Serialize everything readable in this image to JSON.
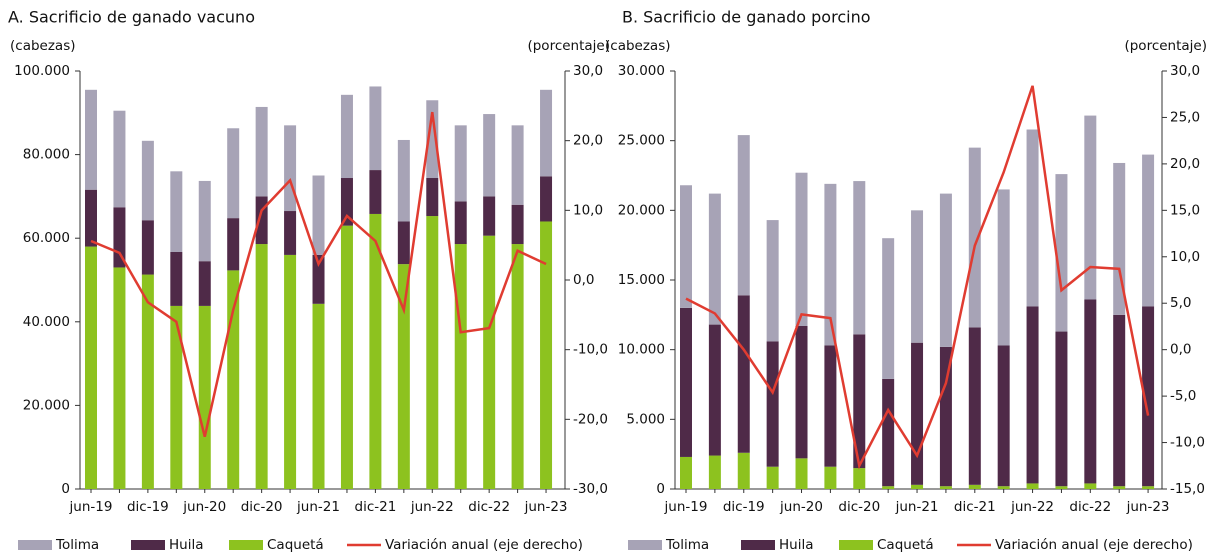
{
  "chart_data": [
    {
      "type": "stacked_bar_line",
      "title": "A. Sacrificio de ganado vacuno",
      "y_label": "(cabezas)",
      "y2_label": "(porcentaje)",
      "categories": [
        "jun-19",
        null,
        "dic-19",
        null,
        "jun-20",
        null,
        "dic-20",
        null,
        "jun-21",
        null,
        "dic-21",
        null,
        "jun-22",
        null,
        "dic-22",
        null,
        "jun-23"
      ],
      "ylim": [
        0,
        100000
      ],
      "yticks": [
        0,
        {
          "value": 20000,
          "label": "20.000"
        },
        {
          "value": 40000,
          "label": "40.000"
        },
        {
          "value": 60000,
          "label": "60.000"
        },
        {
          "value": 80000,
          "label": "80.000"
        },
        {
          "value": 100000,
          "label": "100.000"
        }
      ],
      "y2lim": [
        -30,
        30
      ],
      "y2ticks": [
        {
          "value": -30,
          "label": "-30,0"
        },
        {
          "value": -20,
          "label": "-20,0"
        },
        {
          "value": -10,
          "label": "-10,0"
        },
        {
          "value": 0,
          "label": "0,0"
        },
        {
          "value": 10,
          "label": "10,0"
        },
        {
          "value": 20,
          "label": "20,0"
        },
        {
          "value": 30,
          "label": "30,0"
        }
      ],
      "series": [
        {
          "name": "Caquetá",
          "color": "#8dc21f",
          "values": [
            58000,
            53000,
            51300,
            43800,
            43800,
            52300,
            58600,
            56000,
            44300,
            63000,
            65800,
            53800,
            65300,
            58600,
            60600,
            58600,
            64000
          ]
        },
        {
          "name": "Huila",
          "color": "#4f2a48",
          "values": [
            13600,
            14400,
            13000,
            12900,
            10700,
            12500,
            11400,
            10500,
            11700,
            11400,
            10500,
            10200,
            9100,
            10200,
            9400,
            9400,
            10800
          ]
        },
        {
          "name": "Tolima",
          "color": "#a7a3b6",
          "values": [
            23900,
            23100,
            19000,
            19300,
            19200,
            21500,
            21400,
            20500,
            19000,
            19900,
            20000,
            19500,
            18600,
            18200,
            19700,
            19000,
            20700
          ]
        },
        {
          "name": "Variación anual (eje derecho)",
          "color": "#e03c31",
          "axis": "y2",
          "values": [
            5.6,
            3.9,
            -3.2,
            -6.0,
            -22.5,
            -4.3,
            10.0,
            14.3,
            2.3,
            9.2,
            5.6,
            -4.3,
            24.1,
            -7.5,
            -6.9,
            4.2,
            2.3
          ]
        }
      ]
    },
    {
      "type": "stacked_bar_line",
      "title": "B. Sacrificio de ganado porcino",
      "y_label": "(cabezas)",
      "y2_label": "(porcentaje)",
      "categories": [
        "jun-19",
        null,
        "dic-19",
        null,
        "jun-20",
        null,
        "dic-20",
        null,
        "jun-21",
        null,
        "dic-21",
        null,
        "jun-22",
        null,
        "dic-22",
        null,
        "jun-23"
      ],
      "ylim": [
        0,
        30000
      ],
      "yticks": [
        0,
        {
          "value": 5000,
          "label": "5.000"
        },
        {
          "value": 10000,
          "label": "10.000"
        },
        {
          "value": 15000,
          "label": "15.000"
        },
        {
          "value": 20000,
          "label": "20.000"
        },
        {
          "value": 25000,
          "label": "25.000"
        },
        {
          "value": 30000,
          "label": "30.000"
        }
      ],
      "y2lim": [
        -15,
        30
      ],
      "y2ticks": [
        {
          "value": -15,
          "label": "-15,0"
        },
        {
          "value": -10,
          "label": "-10,0"
        },
        {
          "value": -5,
          "label": "-5,0"
        },
        {
          "value": 0,
          "label": "0,0"
        },
        {
          "value": 5,
          "label": "5,0"
        },
        {
          "value": 10,
          "label": "10,0"
        },
        {
          "value": 15,
          "label": "15,0"
        },
        {
          "value": 20,
          "label": "20,0"
        },
        {
          "value": 25,
          "label": "25,0"
        },
        {
          "value": 30,
          "label": "30,0"
        }
      ],
      "series": [
        {
          "name": "Caquetá",
          "color": "#8dc21f",
          "values": [
            2300,
            2400,
            2600,
            1600,
            2200,
            1600,
            1500,
            200,
            300,
            200,
            300,
            200,
            400,
            200,
            400,
            200,
            200
          ]
        },
        {
          "name": "Huila",
          "color": "#4f2a48",
          "values": [
            10700,
            9400,
            11300,
            9000,
            9500,
            8700,
            9600,
            7700,
            10200,
            10000,
            11300,
            10100,
            12700,
            11100,
            13200,
            12300,
            12900
          ]
        },
        {
          "name": "Tolima",
          "color": "#a7a3b6",
          "values": [
            8800,
            9400,
            11500,
            8700,
            11000,
            11600,
            11000,
            10100,
            9500,
            11000,
            12900,
            11200,
            12700,
            11300,
            13200,
            10900,
            10900
          ]
        },
        {
          "name": "Variación anual (eje derecho)",
          "color": "#e03c31",
          "axis": "y2",
          "values": [
            5.5,
            3.9,
            0.0,
            -4.6,
            3.8,
            3.4,
            -12.5,
            -6.5,
            -11.4,
            -3.6,
            11.2,
            19.1,
            28.4,
            6.4,
            8.9,
            8.7,
            -7.1
          ]
        }
      ]
    }
  ]
}
